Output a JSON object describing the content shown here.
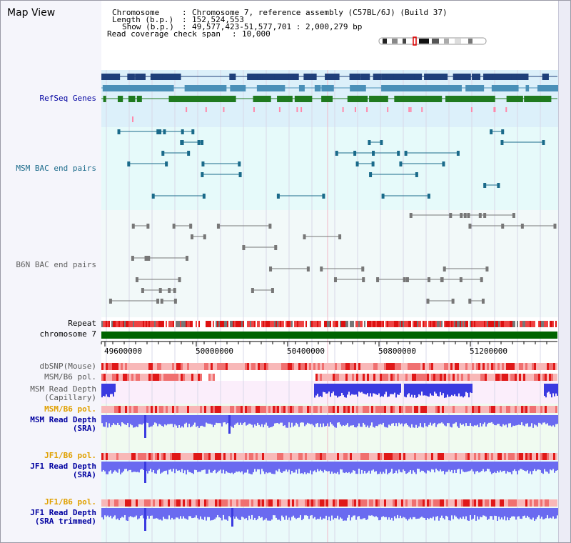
{
  "title": "Map View",
  "header": {
    "chromosome_label": "Chromosome",
    "chromosome_value": "Chromosome 7, reference assembly (C57BL/6J) (Build 37)",
    "length_label": "Length (b.p.)",
    "length_value": "152,524,553",
    "show_label": "Show (b.p.)",
    "show_value": "49,577,423-51,577,701 : 2,000,279 bp",
    "coverage_label": "Read coverage check span",
    "coverage_value": "10,000"
  },
  "tracks": {
    "refseq": "RefSeq Genes",
    "msm_bac": "MSM BAC end pairs",
    "b6n_bac": "B6N BAC end pairs",
    "repeat": "Repeat",
    "chromosome": "chromosome 7",
    "dbsnp": "dbSNP(Mouse)",
    "msm_b6_pol": "MSM/B6 pol.",
    "msm_read_depth_cap_1": "MSM Read Depth",
    "msm_read_depth_cap_2": "(Capillary)",
    "msm_b6_pol_sra": "MSM/B6 pol.",
    "msm_read_depth_sra_1": "MSM Read Depth",
    "msm_read_depth_sra_2": "(SRA)",
    "jf1_b6_pol": "JF1/B6 pol.",
    "jf1_read_depth_1": "JF1 Read Depth",
    "jf1_read_depth_2": "(SRA)",
    "jf1_b6_pol_trim": "JF1/B6 pol.",
    "jf1_read_depth_trim_1": "JF1 Read Depth",
    "jf1_read_depth_trim_2": "(SRA trimmed)"
  },
  "axis_ticks": [
    "49600000",
    "50000000",
    "50400000",
    "50800000",
    "51200000"
  ],
  "colors": {
    "refseq_dark": "#1f3f7a",
    "refseq_mid": "#4a90b8",
    "refseq_green": "#1f7a1f",
    "msm_bac": "#1a6a8a",
    "b6n_bac": "#777777",
    "depth_blue": "#3a3ae0",
    "label_blue": "#0000a0",
    "label_orange": "#e0a000",
    "chromosome_green": "#006400"
  }
}
